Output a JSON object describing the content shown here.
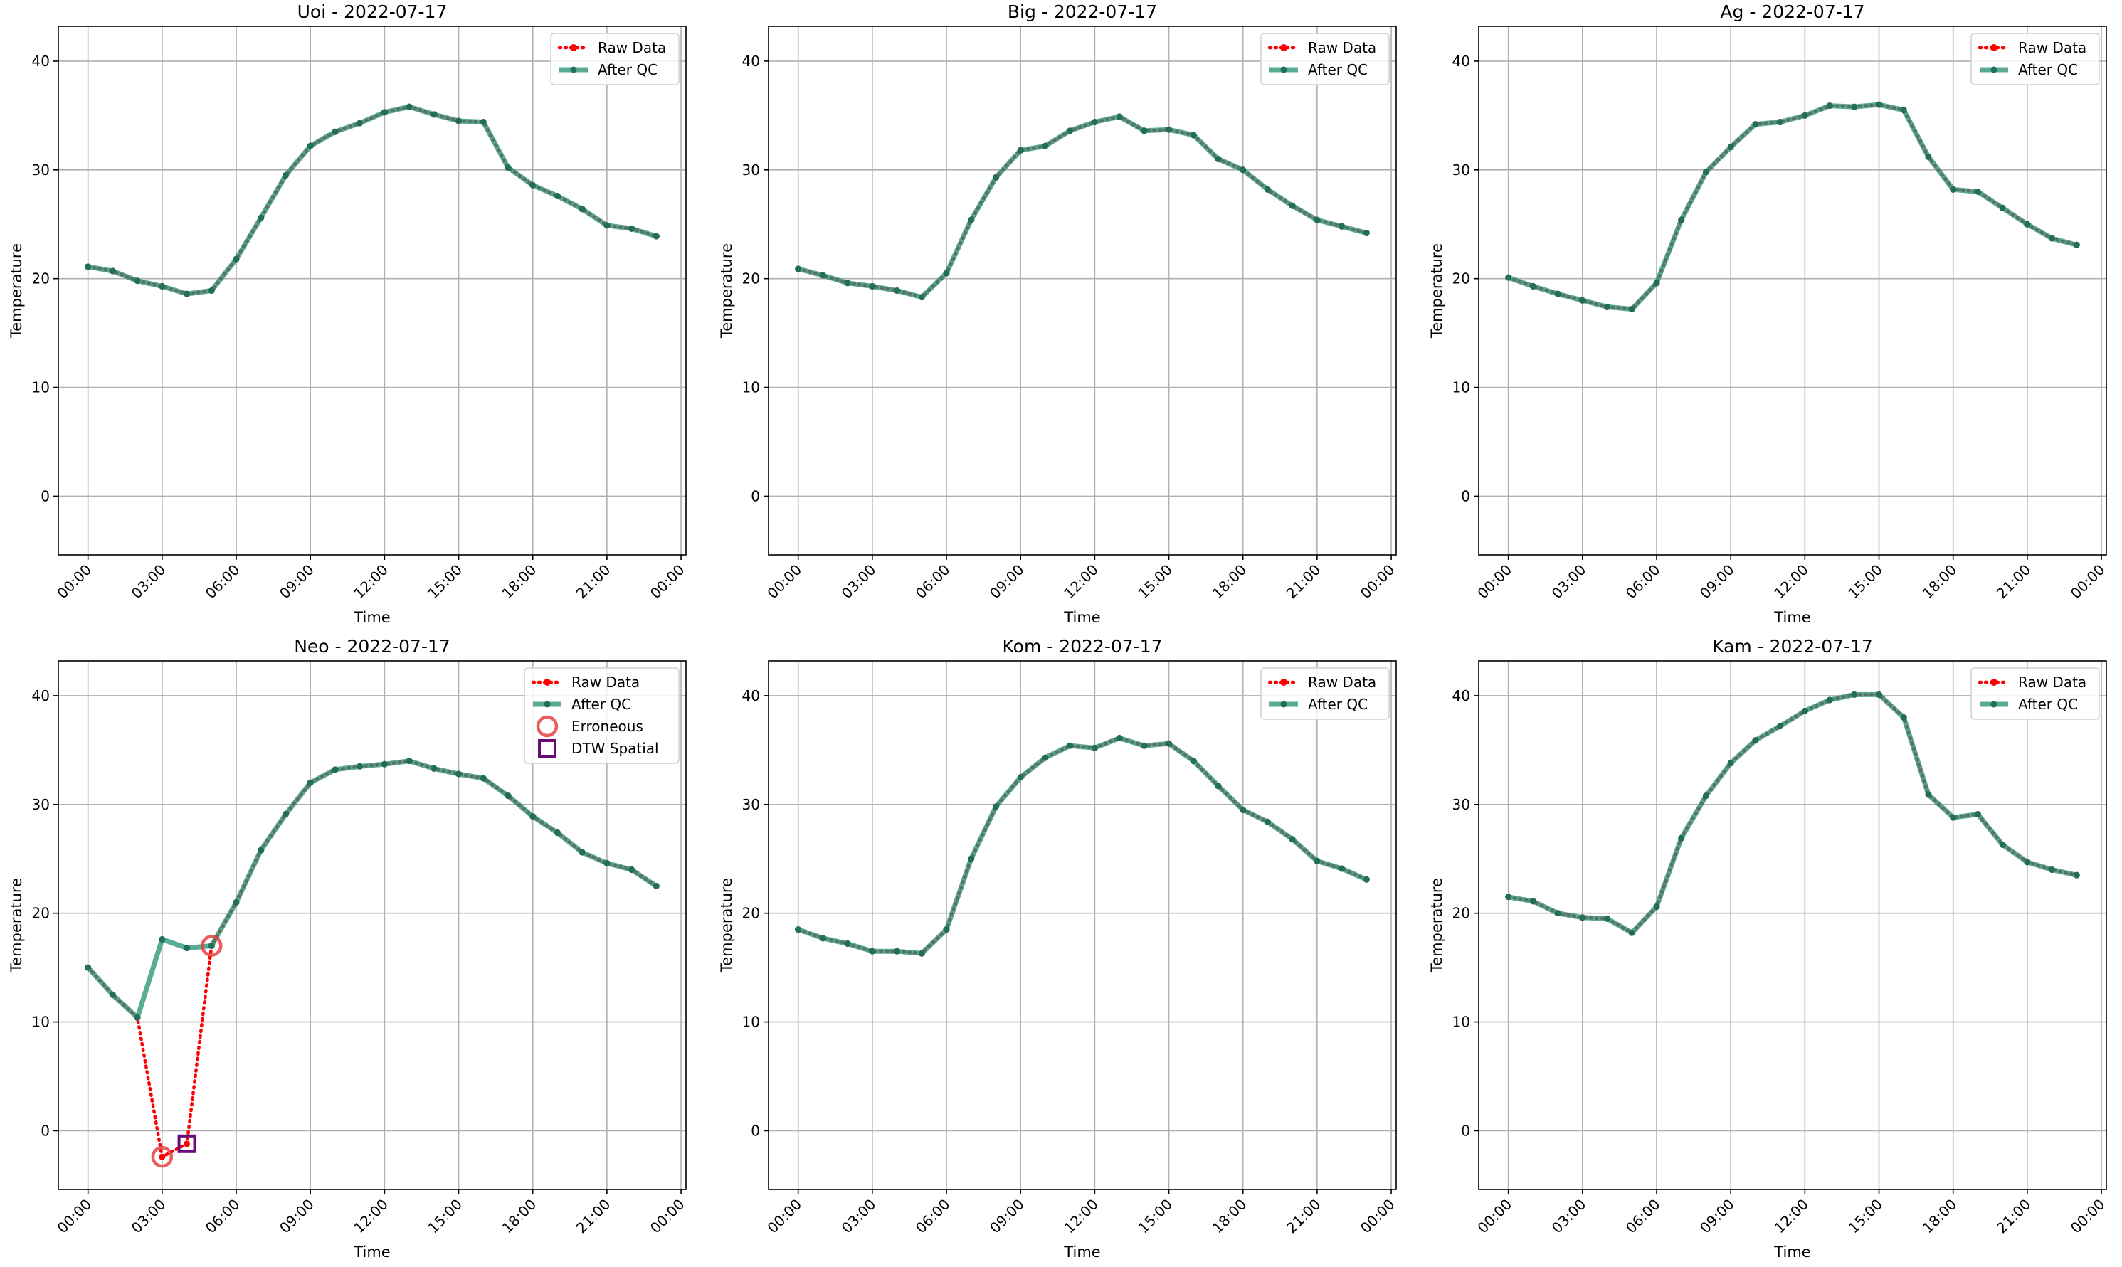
{
  "figure": {
    "colors": {
      "raw": "#ff0000",
      "qc": "#2a9478",
      "qc_marker": "#1f6f5a",
      "erroneous": "#e84040",
      "dtw": "#6a0a78",
      "grid": "#b0b0b0"
    }
  },
  "chart_data": [
    {
      "type": "line",
      "title": "Uoi - 2022-07-17",
      "xlabel": "Time",
      "ylabel": "Temperature",
      "x_ticks": [
        "00:00",
        "03:00",
        "06:00",
        "09:00",
        "12:00",
        "15:00",
        "18:00",
        "21:00",
        "00:00"
      ],
      "x_tick_hours": [
        0,
        3,
        6,
        9,
        12,
        15,
        18,
        21,
        24
      ],
      "y_ticks": [
        0,
        10,
        20,
        30,
        40
      ],
      "xlim": [
        -1.2,
        24.2
      ],
      "ylim": [
        -5.4,
        43.2
      ],
      "grid": true,
      "legend": {
        "location": "upper right",
        "entries": [
          "Raw Data",
          "After QC"
        ]
      },
      "x": [
        0,
        1,
        2,
        3,
        4,
        5,
        6,
        7,
        8,
        9,
        10,
        11,
        12,
        13,
        14,
        15,
        16,
        17,
        18,
        19,
        20,
        21,
        22,
        23
      ],
      "series": [
        {
          "name": "Raw Data",
          "values": [
            21.1,
            20.7,
            19.8,
            19.3,
            18.6,
            18.9,
            21.8,
            25.6,
            29.5,
            32.2,
            33.5,
            34.3,
            35.3,
            35.8,
            35.1,
            34.5,
            34.4,
            30.2,
            28.6,
            27.6,
            26.4,
            24.9,
            24.6,
            23.9
          ]
        },
        {
          "name": "After QC",
          "values": [
            21.1,
            20.7,
            19.8,
            19.3,
            18.6,
            18.9,
            21.8,
            25.6,
            29.5,
            32.2,
            33.5,
            34.3,
            35.3,
            35.8,
            35.1,
            34.5,
            34.4,
            30.2,
            28.6,
            27.6,
            26.4,
            24.9,
            24.6,
            23.9
          ]
        }
      ]
    },
    {
      "type": "line",
      "title": "Big - 2022-07-17",
      "xlabel": "Time",
      "ylabel": "Temperature",
      "x_ticks": [
        "00:00",
        "03:00",
        "06:00",
        "09:00",
        "12:00",
        "15:00",
        "18:00",
        "21:00",
        "00:00"
      ],
      "x_tick_hours": [
        0,
        3,
        6,
        9,
        12,
        15,
        18,
        21,
        24
      ],
      "y_ticks": [
        0,
        10,
        20,
        30,
        40
      ],
      "xlim": [
        -1.2,
        24.2
      ],
      "ylim": [
        -5.4,
        43.2
      ],
      "grid": true,
      "legend": {
        "location": "upper right",
        "entries": [
          "Raw Data",
          "After QC"
        ]
      },
      "x": [
        0,
        1,
        2,
        3,
        4,
        5,
        6,
        7,
        8,
        9,
        10,
        11,
        12,
        13,
        14,
        15,
        16,
        17,
        18,
        19,
        20,
        21,
        22,
        23
      ],
      "series": [
        {
          "name": "Raw Data",
          "values": [
            20.9,
            20.3,
            19.6,
            19.3,
            18.9,
            18.3,
            20.5,
            25.4,
            29.3,
            31.8,
            32.2,
            33.6,
            34.4,
            34.9,
            33.6,
            33.7,
            33.2,
            31.0,
            30.0,
            28.2,
            26.7,
            25.4,
            24.8,
            24.2
          ]
        },
        {
          "name": "After QC",
          "values": [
            20.9,
            20.3,
            19.6,
            19.3,
            18.9,
            18.3,
            20.5,
            25.4,
            29.3,
            31.8,
            32.2,
            33.6,
            34.4,
            34.9,
            33.6,
            33.7,
            33.2,
            31.0,
            30.0,
            28.2,
            26.7,
            25.4,
            24.8,
            24.2
          ]
        }
      ]
    },
    {
      "type": "line",
      "title": "Ag - 2022-07-17",
      "xlabel": "Time",
      "ylabel": "Temperature",
      "x_ticks": [
        "00:00",
        "03:00",
        "06:00",
        "09:00",
        "12:00",
        "15:00",
        "18:00",
        "21:00",
        "00:00"
      ],
      "x_tick_hours": [
        0,
        3,
        6,
        9,
        12,
        15,
        18,
        21,
        24
      ],
      "y_ticks": [
        0,
        10,
        20,
        30,
        40
      ],
      "xlim": [
        -1.2,
        24.2
      ],
      "ylim": [
        -5.4,
        43.2
      ],
      "grid": true,
      "legend": {
        "location": "upper right",
        "entries": [
          "Raw Data",
          "After QC"
        ]
      },
      "x": [
        0,
        1,
        2,
        3,
        4,
        5,
        6,
        7,
        8,
        9,
        10,
        11,
        12,
        13,
        14,
        15,
        16,
        17,
        18,
        19,
        20,
        21,
        22,
        23
      ],
      "series": [
        {
          "name": "Raw Data",
          "values": [
            20.1,
            19.3,
            18.6,
            18.0,
            17.4,
            17.2,
            19.6,
            25.4,
            29.8,
            32.1,
            34.2,
            34.4,
            35.0,
            35.9,
            35.8,
            36.0,
            35.5,
            31.2,
            28.2,
            28.0,
            26.5,
            25.0,
            23.7,
            23.1
          ]
        },
        {
          "name": "After QC",
          "values": [
            20.1,
            19.3,
            18.6,
            18.0,
            17.4,
            17.2,
            19.6,
            25.4,
            29.8,
            32.1,
            34.2,
            34.4,
            35.0,
            35.9,
            35.8,
            36.0,
            35.5,
            31.2,
            28.2,
            28.0,
            26.5,
            25.0,
            23.7,
            23.1
          ]
        }
      ]
    },
    {
      "type": "line",
      "title": "Neo - 2022-07-17",
      "xlabel": "Time",
      "ylabel": "Temperature",
      "x_ticks": [
        "00:00",
        "03:00",
        "06:00",
        "09:00",
        "12:00",
        "15:00",
        "18:00",
        "21:00",
        "00:00"
      ],
      "x_tick_hours": [
        0,
        3,
        6,
        9,
        12,
        15,
        18,
        21,
        24
      ],
      "y_ticks": [
        0,
        10,
        20,
        30,
        40
      ],
      "xlim": [
        -1.2,
        24.2
      ],
      "ylim": [
        -5.4,
        43.2
      ],
      "grid": true,
      "legend": {
        "location": "upper right",
        "entries": [
          "Raw Data",
          "After QC",
          "Erroneous",
          "DTW Spatial"
        ]
      },
      "x": [
        0,
        1,
        2,
        3,
        4,
        5,
        6,
        7,
        8,
        9,
        10,
        11,
        12,
        13,
        14,
        15,
        16,
        17,
        18,
        19,
        20,
        21,
        22,
        23
      ],
      "series": [
        {
          "name": "Raw Data",
          "values": [
            15.0,
            12.5,
            10.4,
            -2.4,
            -1.2,
            17.0,
            21.0,
            25.8,
            29.1,
            32.0,
            33.2,
            33.5,
            33.7,
            34.0,
            33.3,
            32.8,
            32.4,
            30.8,
            28.9,
            27.4,
            25.6,
            24.6,
            24.0,
            22.5
          ]
        },
        {
          "name": "After QC",
          "values": [
            15.0,
            12.5,
            10.4,
            17.6,
            16.8,
            17.0,
            21.0,
            25.8,
            29.1,
            32.0,
            33.2,
            33.5,
            33.7,
            34.0,
            33.3,
            32.8,
            32.4,
            30.8,
            28.9,
            27.4,
            25.6,
            24.6,
            24.0,
            22.5
          ]
        },
        {
          "name": "Erroneous",
          "points": [
            [
              3,
              -2.4
            ],
            [
              5,
              17.0
            ]
          ]
        },
        {
          "name": "DTW Spatial",
          "points": [
            [
              4,
              -1.2
            ]
          ]
        }
      ]
    },
    {
      "type": "line",
      "title": "Kom - 2022-07-17",
      "xlabel": "Time",
      "ylabel": "Temperature",
      "x_ticks": [
        "00:00",
        "03:00",
        "06:00",
        "09:00",
        "12:00",
        "15:00",
        "18:00",
        "21:00",
        "00:00"
      ],
      "x_tick_hours": [
        0,
        3,
        6,
        9,
        12,
        15,
        18,
        21,
        24
      ],
      "y_ticks": [
        0,
        10,
        20,
        30,
        40
      ],
      "xlim": [
        -1.2,
        24.2
      ],
      "ylim": [
        -5.4,
        43.2
      ],
      "grid": true,
      "legend": {
        "location": "upper right",
        "entries": [
          "Raw Data",
          "After QC"
        ]
      },
      "x": [
        0,
        1,
        2,
        3,
        4,
        5,
        6,
        7,
        8,
        9,
        10,
        11,
        12,
        13,
        14,
        15,
        16,
        17,
        18,
        19,
        20,
        21,
        22,
        23
      ],
      "series": [
        {
          "name": "Raw Data",
          "values": [
            18.5,
            17.7,
            17.2,
            16.5,
            16.5,
            16.3,
            18.5,
            25.0,
            29.8,
            32.5,
            34.3,
            35.4,
            35.2,
            36.1,
            35.4,
            35.6,
            34.0,
            31.7,
            29.5,
            28.4,
            26.8,
            24.8,
            24.1,
            23.1
          ]
        },
        {
          "name": "After QC",
          "values": [
            18.5,
            17.7,
            17.2,
            16.5,
            16.5,
            16.3,
            18.5,
            25.0,
            29.8,
            32.5,
            34.3,
            35.4,
            35.2,
            36.1,
            35.4,
            35.6,
            34.0,
            31.7,
            29.5,
            28.4,
            26.8,
            24.8,
            24.1,
            23.1
          ]
        }
      ]
    },
    {
      "type": "line",
      "title": "Kam - 2022-07-17",
      "xlabel": "Time",
      "ylabel": "Temperature",
      "x_ticks": [
        "00:00",
        "03:00",
        "06:00",
        "09:00",
        "12:00",
        "15:00",
        "18:00",
        "21:00",
        "00:00"
      ],
      "x_tick_hours": [
        0,
        3,
        6,
        9,
        12,
        15,
        18,
        21,
        24
      ],
      "y_ticks": [
        0,
        10,
        20,
        30,
        40
      ],
      "xlim": [
        -1.2,
        24.2
      ],
      "ylim": [
        -5.4,
        43.2
      ],
      "grid": true,
      "legend": {
        "location": "upper right",
        "entries": [
          "Raw Data",
          "After QC"
        ]
      },
      "x": [
        0,
        1,
        2,
        3,
        4,
        5,
        6,
        7,
        8,
        9,
        10,
        11,
        12,
        13,
        14,
        15,
        16,
        17,
        18,
        19,
        20,
        21,
        22,
        23
      ],
      "series": [
        {
          "name": "Raw Data",
          "values": [
            21.5,
            21.1,
            20.0,
            19.6,
            19.5,
            18.2,
            20.6,
            26.9,
            30.8,
            33.8,
            35.9,
            37.2,
            38.6,
            39.6,
            40.1,
            40.1,
            38.0,
            30.9,
            28.8,
            29.1,
            26.3,
            24.7,
            24.0,
            23.5
          ]
        },
        {
          "name": "After QC",
          "values": [
            21.5,
            21.1,
            20.0,
            19.6,
            19.5,
            18.2,
            20.6,
            26.9,
            30.8,
            33.8,
            35.9,
            37.2,
            38.6,
            39.6,
            40.1,
            40.1,
            38.0,
            30.9,
            28.8,
            29.1,
            26.3,
            24.7,
            24.0,
            23.5
          ]
        }
      ]
    }
  ]
}
